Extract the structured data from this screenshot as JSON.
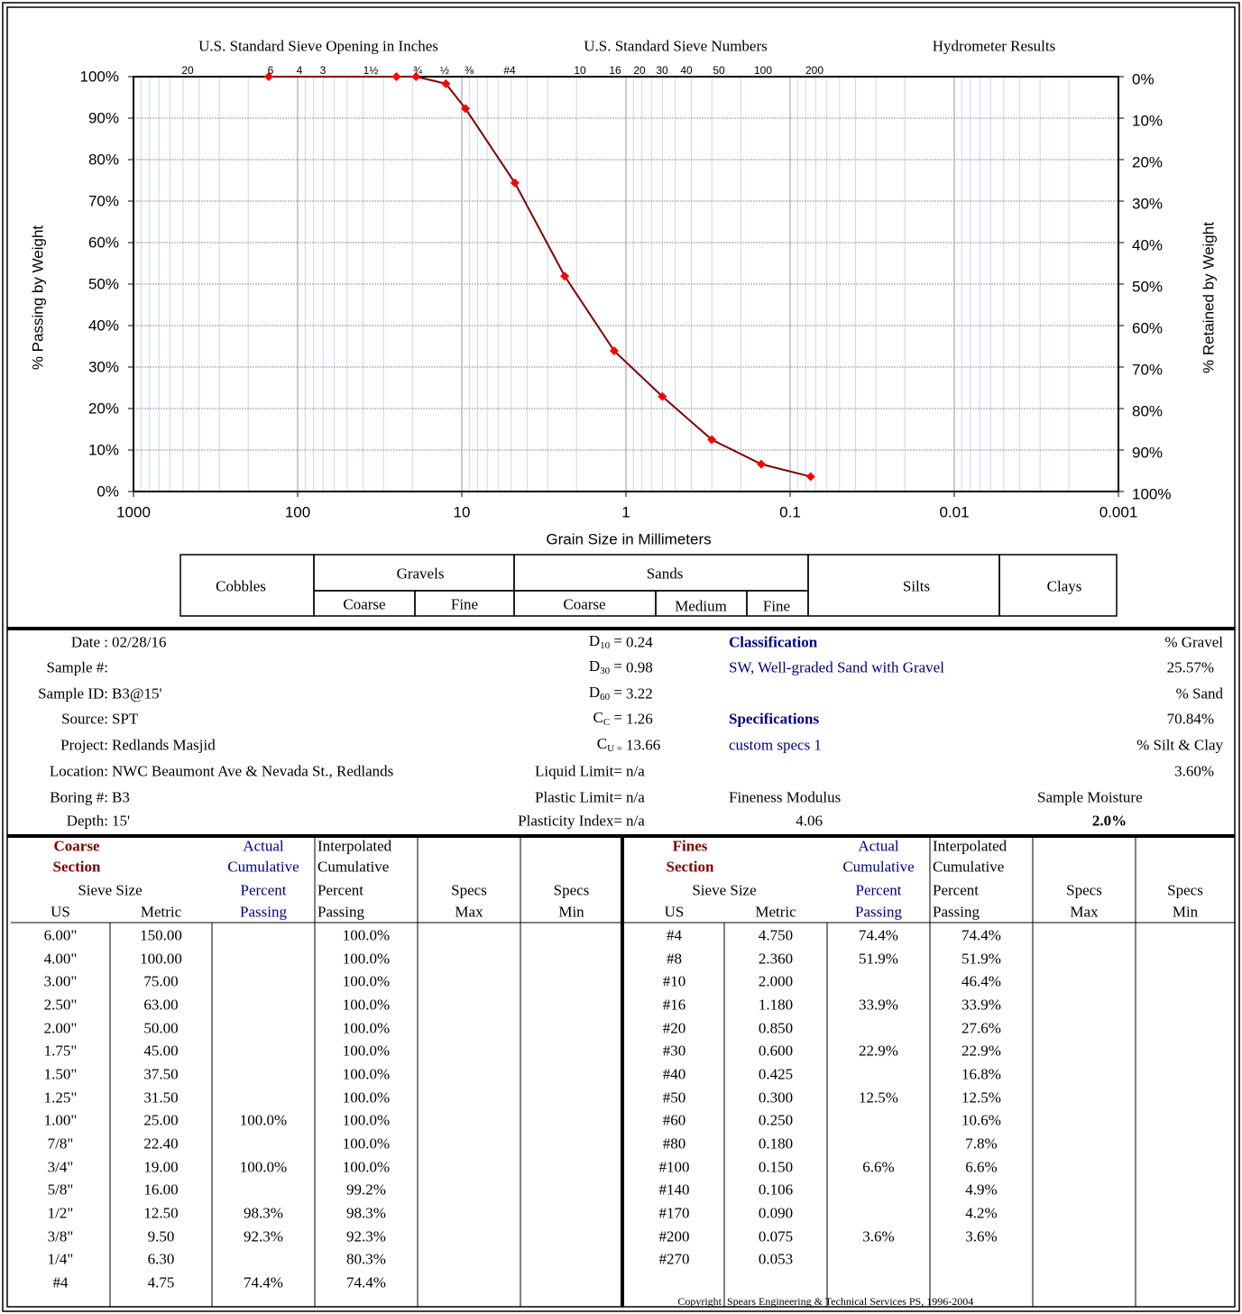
{
  "chart_data": {
    "type": "line",
    "header_labels": [
      "U.S. Standard Sieve Opening in Inches",
      "U.S. Standard Sieve Numbers",
      "Hydrometer Results"
    ],
    "sieve_labels": [
      "20",
      "6",
      "4",
      "3",
      "1½",
      "¾",
      "½",
      "⅜",
      "#4",
      "10",
      "16",
      "20",
      "30",
      "40",
      "50",
      "100",
      "200"
    ],
    "x_label": "Grain Size in Millimeters",
    "y_label": "% Passing by Weight",
    "y2_label": "% Retained by Weight",
    "x_scale": "log",
    "xlim": [
      1000,
      0.001
    ],
    "xticks": [
      1000,
      100,
      10,
      1,
      0.1,
      0.01,
      0.001
    ],
    "ylim": [
      0,
      100
    ],
    "yticks": [
      {
        "value": 0,
        "label": "0%"
      },
      {
        "value": 10,
        "label": "10%"
      },
      {
        "value": 20,
        "label": "20%"
      },
      {
        "value": 30,
        "label": "30%"
      },
      {
        "value": 40,
        "label": "40%"
      },
      {
        "value": 50,
        "label": "50%"
      },
      {
        "value": 60,
        "label": "60%"
      },
      {
        "value": 70,
        "label": "70%"
      },
      {
        "value": 80,
        "label": "80%"
      },
      {
        "value": 90,
        "label": "90%"
      },
      {
        "value": 100,
        "label": "100%"
      }
    ],
    "y2lim": [
      100,
      0
    ],
    "y2ticks": [
      {
        "value": 0,
        "label": "0%"
      },
      {
        "value": 10,
        "label": "10%"
      },
      {
        "value": 20,
        "label": "20%"
      },
      {
        "value": 30,
        "label": "30%"
      },
      {
        "value": 40,
        "label": "40%"
      },
      {
        "value": 50,
        "label": "50%"
      },
      {
        "value": 60,
        "label": "60%"
      },
      {
        "value": 70,
        "label": "70%"
      },
      {
        "value": 80,
        "label": "80%"
      },
      {
        "value": 90,
        "label": "90%"
      },
      {
        "value": 100,
        "label": "100%"
      }
    ],
    "grid": true,
    "x": [
      150,
      25,
      19,
      12.5,
      9.5,
      4.75,
      2.36,
      1.18,
      0.6,
      0.3,
      0.15,
      0.075
    ],
    "values": [
      100,
      100,
      100,
      98.3,
      92.3,
      74.4,
      51.9,
      33.9,
      22.9,
      12.5,
      6.6,
      3.6
    ],
    "color": "#ff0000",
    "line_color": "#800000"
  },
  "soil_classes": {
    "cobbles": "Cobbles",
    "gravels": {
      "name": "Gravels",
      "parts": [
        "Coarse",
        "Fine"
      ]
    },
    "sands": {
      "name": "Sands",
      "parts": [
        "Coarse",
        "Medium",
        "Fine"
      ]
    },
    "silts": "Silts",
    "clays": "Clays"
  },
  "sample_info": [
    {
      "label": "Date :",
      "value": "02/28/16"
    },
    {
      "label": "Sample #:"
    },
    {
      "label": "Sample ID:",
      "value": "B3@15'"
    },
    {
      "label": "Source:",
      "value": "SPT"
    },
    {
      "label": "Project:",
      "value": "Redlands Masjid"
    },
    {
      "label": "Location:",
      "value": "NWC Beaumont Ave & Nevada St., Redlands"
    },
    {
      "label": "Boring #:",
      "value": "B3"
    },
    {
      "label": "Depth:",
      "value": "15'"
    }
  ],
  "gradation": [
    {
      "symbol": "D",
      "sub": "10",
      "eq": " = ",
      "value": "0.24"
    },
    {
      "symbol": "D",
      "sub": "30",
      "eq": " = ",
      "value": "0.98"
    },
    {
      "symbol": "D",
      "sub": "60",
      "eq": " = ",
      "value": "3.22"
    },
    {
      "symbol": "C",
      "sub": "C",
      "eq": " = ",
      "value": "1.26"
    },
    {
      "symbol": "C",
      "sub": "U =",
      "value": "13.66"
    },
    {
      "symbol": "Liquid Limit=",
      "value": "n/a"
    },
    {
      "symbol": "Plastic Limit=",
      "value": "n/a"
    },
    {
      "symbol": "Plasticity Index=",
      "value": "n/a"
    }
  ],
  "classification": {
    "title": "Classification",
    "value": "SW, Well-graded Sand with Gravel"
  },
  "specifications": {
    "title": "Specifications",
    "value": "custom specs 1"
  },
  "fineness_modulus": {
    "label": "Fineness Modulus",
    "value": "4.06"
  },
  "fractions": [
    {
      "label": "% Gravel",
      "value": "25.57%"
    },
    {
      "label": "% Sand",
      "value": "70.84%"
    },
    {
      "label": "% Silt & Clay",
      "value": "3.60%"
    }
  ],
  "sample_moisture": {
    "label": "Sample Moisture",
    "value": "2.0%"
  },
  "coarse_table": {
    "section": [
      "Coarse",
      "Section"
    ],
    "actual_header": [
      "Actual",
      "Cumulative",
      "Percent",
      "Passing"
    ],
    "interp_header": [
      "Interpolated",
      "Cumulative",
      "Percent",
      "Passing"
    ],
    "sieve_size": "Sieve Size",
    "us": "US",
    "metric": "Metric",
    "specs_max": [
      "Specs",
      "Max"
    ],
    "specs_min": [
      "Specs",
      "Min"
    ],
    "rows": [
      [
        "6.00\"",
        "150.00",
        null,
        "100.0%"
      ],
      [
        "4.00\"",
        "100.00",
        null,
        "100.0%"
      ],
      [
        "3.00\"",
        "75.00",
        null,
        "100.0%"
      ],
      [
        "2.50\"",
        "63.00",
        null,
        "100.0%"
      ],
      [
        "2.00\"",
        "50.00",
        null,
        "100.0%"
      ],
      [
        "1.75\"",
        "45.00",
        null,
        "100.0%"
      ],
      [
        "1.50\"",
        "37.50",
        null,
        "100.0%"
      ],
      [
        "1.25\"",
        "31.50",
        null,
        "100.0%"
      ],
      [
        "1.00\"",
        "25.00",
        "100.0%",
        "100.0%"
      ],
      [
        "7/8\"",
        "22.40",
        null,
        "100.0%"
      ],
      [
        "3/4\"",
        "19.00",
        "100.0%",
        "100.0%"
      ],
      [
        "5/8\"",
        "16.00",
        null,
        "99.2%"
      ],
      [
        "1/2\"",
        "12.50",
        "98.3%",
        "98.3%"
      ],
      [
        "3/8\"",
        "9.50",
        "92.3%",
        "92.3%"
      ],
      [
        "1/4\"",
        "6.30",
        null,
        "80.3%"
      ],
      [
        "#4",
        "4.75",
        "74.4%",
        "74.4%"
      ]
    ]
  },
  "fines_table": {
    "section": [
      "Fines",
      "Section"
    ],
    "actual_header": [
      "Actual",
      "Cumulative",
      "Percent",
      "Passing"
    ],
    "interp_header": [
      "Interpolated",
      "Cumulative",
      "Percent",
      "Passing"
    ],
    "sieve_size": "Sieve Size",
    "us": "US",
    "metric": "Metric",
    "specs_max": [
      "Specs",
      "Max"
    ],
    "specs_min": [
      "Specs",
      "Min"
    ],
    "rows": [
      [
        "#4",
        "4.750",
        "74.4%",
        "74.4%"
      ],
      [
        "#8",
        "2.360",
        "51.9%",
        "51.9%"
      ],
      [
        "#10",
        "2.000",
        null,
        "46.4%"
      ],
      [
        "#16",
        "1.180",
        "33.9%",
        "33.9%"
      ],
      [
        "#20",
        "0.850",
        null,
        "27.6%"
      ],
      [
        "#30",
        "0.600",
        "22.9%",
        "22.9%"
      ],
      [
        "#40",
        "0.425",
        null,
        "16.8%"
      ],
      [
        "#50",
        "0.300",
        "12.5%",
        "12.5%"
      ],
      [
        "#60",
        "0.250",
        null,
        "10.6%"
      ],
      [
        "#80",
        "0.180",
        null,
        "7.8%"
      ],
      [
        "#100",
        "0.150",
        "6.6%",
        "6.6%"
      ],
      [
        "#140",
        "0.106",
        null,
        "4.9%"
      ],
      [
        "#170",
        "0.090",
        null,
        "4.2%"
      ],
      [
        "#200",
        "0.075",
        "3.6%",
        "3.6%"
      ],
      [
        "#270",
        "0.053",
        null,
        null
      ]
    ]
  },
  "copyright": [
    "Copyright",
    "Spears Engineering & Technical Services PS, 1996-2004"
  ]
}
